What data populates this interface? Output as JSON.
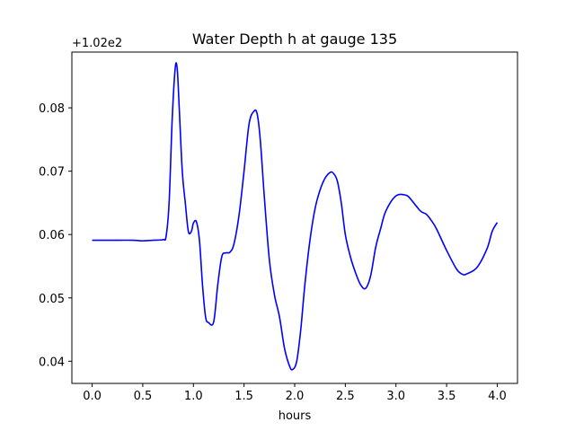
{
  "chart_data": {
    "type": "line",
    "title": "Water Depth h at gauge 135",
    "xlabel": "hours",
    "ylabel": "",
    "y_offset_text": "+1.02e2",
    "y_offset": 102.0,
    "xlim": [
      -0.2,
      4.2
    ],
    "ylim": [
      0.0365,
      0.0888
    ],
    "x_ticks": [
      0.0,
      0.5,
      1.0,
      1.5,
      2.0,
      2.5,
      3.0,
      3.5,
      4.0
    ],
    "x_tick_labels": [
      "0.0",
      "0.5",
      "1.0",
      "1.5",
      "2.0",
      "2.5",
      "3.0",
      "3.5",
      "4.0"
    ],
    "y_ticks": [
      0.04,
      0.05,
      0.06,
      0.07,
      0.08
    ],
    "y_tick_labels": [
      "0.04",
      "0.05",
      "0.06",
      "0.07",
      "0.08"
    ],
    "grid": false,
    "series": [
      {
        "color": "#0000ff",
        "x": [
          0.0,
          0.2,
          0.4,
          0.5,
          0.6,
          0.7,
          0.73,
          0.76,
          0.79,
          0.82,
          0.84,
          0.86,
          0.89,
          0.92,
          0.95,
          0.98,
          1.0,
          1.03,
          1.06,
          1.09,
          1.12,
          1.15,
          1.2,
          1.24,
          1.28,
          1.32,
          1.36,
          1.4,
          1.45,
          1.5,
          1.55,
          1.6,
          1.63,
          1.66,
          1.7,
          1.75,
          1.8,
          1.85,
          1.9,
          1.95,
          1.98,
          2.02,
          2.06,
          2.1,
          2.15,
          2.2,
          2.25,
          2.3,
          2.35,
          2.38,
          2.42,
          2.46,
          2.5,
          2.55,
          2.6,
          2.65,
          2.7,
          2.75,
          2.8,
          2.85,
          2.9,
          3.0,
          3.1,
          3.15,
          3.2,
          3.25,
          3.3,
          3.35,
          3.4,
          3.5,
          3.6,
          3.66,
          3.7,
          3.8,
          3.9,
          3.95,
          4.0
        ],
        "y": [
          0.0591,
          0.0591,
          0.0591,
          0.059,
          0.0591,
          0.0592,
          0.0597,
          0.065,
          0.078,
          0.0862,
          0.0862,
          0.08,
          0.07,
          0.065,
          0.0605,
          0.0605,
          0.0618,
          0.062,
          0.059,
          0.052,
          0.047,
          0.0461,
          0.0462,
          0.052,
          0.0565,
          0.0571,
          0.0572,
          0.0585,
          0.063,
          0.07,
          0.0775,
          0.0795,
          0.079,
          0.075,
          0.066,
          0.056,
          0.0505,
          0.047,
          0.042,
          0.0392,
          0.0387,
          0.04,
          0.045,
          0.052,
          0.059,
          0.064,
          0.067,
          0.0689,
          0.0698,
          0.0697,
          0.0685,
          0.065,
          0.06,
          0.0565,
          0.054,
          0.0521,
          0.0515,
          0.0535,
          0.058,
          0.061,
          0.0637,
          0.0661,
          0.0662,
          0.0655,
          0.0645,
          0.0636,
          0.0632,
          0.0622,
          0.0609,
          0.0575,
          0.0545,
          0.0537,
          0.0538,
          0.0548,
          0.0578,
          0.0605,
          0.0619
        ]
      }
    ]
  }
}
